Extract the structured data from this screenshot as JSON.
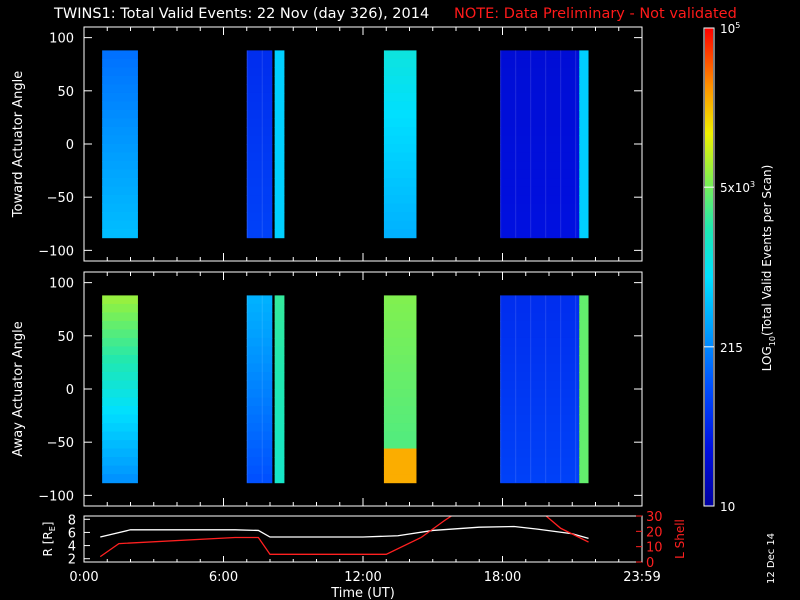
{
  "header": {
    "title": "TWINS1: Total Valid Events: 22 Nov (day 326), 2014",
    "note": "NOTE: Data Preliminary - Not validated"
  },
  "footer": {
    "date_stamp": "12 Dec 14"
  },
  "colors": {
    "background": "#000000",
    "axes": "#ffffff",
    "note_text": "#ff1a1a",
    "r_line": "#ffffff",
    "lshell_line": "#ff2020"
  },
  "chart_data": [
    {
      "type": "heatmap",
      "name": "toward",
      "ylabel": "Toward Actuator Angle",
      "ylim": [
        -110,
        110
      ],
      "xlim": [
        0,
        24
      ],
      "yticks": [
        -100,
        -50,
        0,
        50,
        100
      ],
      "yticklabels": [
        "−100",
        "−50",
        "0",
        "50",
        "100"
      ],
      "angle_range": [
        -88,
        88
      ],
      "blocks": [
        {
          "start": 0.78,
          "end": 2.32,
          "top": 0.3,
          "bottom": 0.42
        },
        {
          "start": 7.0,
          "end": 8.1,
          "top": 0.18,
          "bottom": 0.22,
          "streaky": true
        },
        {
          "start": 8.2,
          "end": 8.62,
          "top": 0.45,
          "bottom": 0.45
        },
        {
          "start": 12.9,
          "end": 14.3,
          "top": 0.52,
          "bottom": 0.4
        },
        {
          "start": 17.9,
          "end": 21.3,
          "top": 0.1,
          "bottom": 0.12,
          "streaky": true
        },
        {
          "start": 21.3,
          "end": 21.7,
          "top": 0.45,
          "bottom": 0.45
        }
      ]
    },
    {
      "type": "heatmap",
      "name": "away",
      "ylabel": "Away Actuator Angle",
      "ylim": [
        -110,
        110
      ],
      "xlim": [
        0,
        24
      ],
      "yticks": [
        -100,
        -50,
        0,
        50,
        100
      ],
      "yticklabels": [
        "−100",
        "−50",
        "0",
        "50",
        "100"
      ],
      "angle_range": [
        -88,
        88
      ],
      "blocks": [
        {
          "start": 0.78,
          "end": 2.32,
          "top": 0.7,
          "bottom": 0.35
        },
        {
          "start": 7.0,
          "end": 8.1,
          "top": 0.4,
          "bottom": 0.25,
          "streaky": true
        },
        {
          "start": 8.2,
          "end": 8.62,
          "top": 0.6,
          "bottom": 0.55
        },
        {
          "start": 12.9,
          "end": 14.3,
          "top": 0.68,
          "bottom": 0.62,
          "hotspot": 0.85
        },
        {
          "start": 17.9,
          "end": 21.3,
          "top": 0.18,
          "bottom": 0.22,
          "streaky": true
        },
        {
          "start": 21.3,
          "end": 21.7,
          "top": 0.65,
          "bottom": 0.65
        }
      ]
    },
    {
      "type": "line",
      "name": "orbit",
      "xlabel": "Time (UT)",
      "ylabel_left": "R [R",
      "ylabel_left_sub": "E",
      "ylabel_left_end": "]",
      "ylabel_right": "L Shell",
      "ylim_left": [
        1.5,
        8.5
      ],
      "ylim_right": [
        0,
        30
      ],
      "yticks_left": [
        2,
        4,
        6,
        8
      ],
      "yticks_right": [
        0,
        10,
        20,
        30
      ],
      "xticks": [
        0,
        6,
        12,
        18,
        24
      ],
      "xticklabels": [
        "0:00",
        "6:00",
        "12:00",
        "18:00",
        "23:59"
      ],
      "series": [
        {
          "axis": "left",
          "color": "#ffffff",
          "x": [
            0.7,
            2.0,
            6.5,
            7.5,
            8.0,
            12.0,
            13.5,
            15.0,
            17.0,
            18.5,
            19.5,
            21.0,
            21.7
          ],
          "y": [
            5.3,
            6.4,
            6.4,
            6.3,
            5.3,
            5.3,
            5.5,
            6.3,
            6.8,
            6.9,
            6.5,
            5.8,
            5.1
          ]
        },
        {
          "axis": "right",
          "color": "#ff2020",
          "x": [
            0.7,
            1.5,
            6.5,
            7.5,
            8.0,
            13.0,
            14.5,
            15.5,
            16.0
          ],
          "y": [
            3.5,
            12.0,
            16.0,
            16.0,
            5.0,
            5.0,
            16.0,
            27.0,
            32.0
          ]
        },
        {
          "axis": "right",
          "color": "#ff2020",
          "x": [
            19.8,
            20.5,
            21.7
          ],
          "y": [
            31.0,
            22.0,
            13.0
          ]
        }
      ]
    },
    {
      "type": "colorbar",
      "title": "LOG",
      "title_sub": "10",
      "title_end": "(Total Valid  Events per Scan)",
      "ticks": [
        {
          "frac": 0.0,
          "label": "10"
        },
        {
          "frac": 0.333,
          "label": "215"
        },
        {
          "frac": 0.667,
          "label": "5x10",
          "sup": "3"
        },
        {
          "frac": 1.0,
          "label": "10",
          "sup": "5"
        }
      ]
    }
  ]
}
